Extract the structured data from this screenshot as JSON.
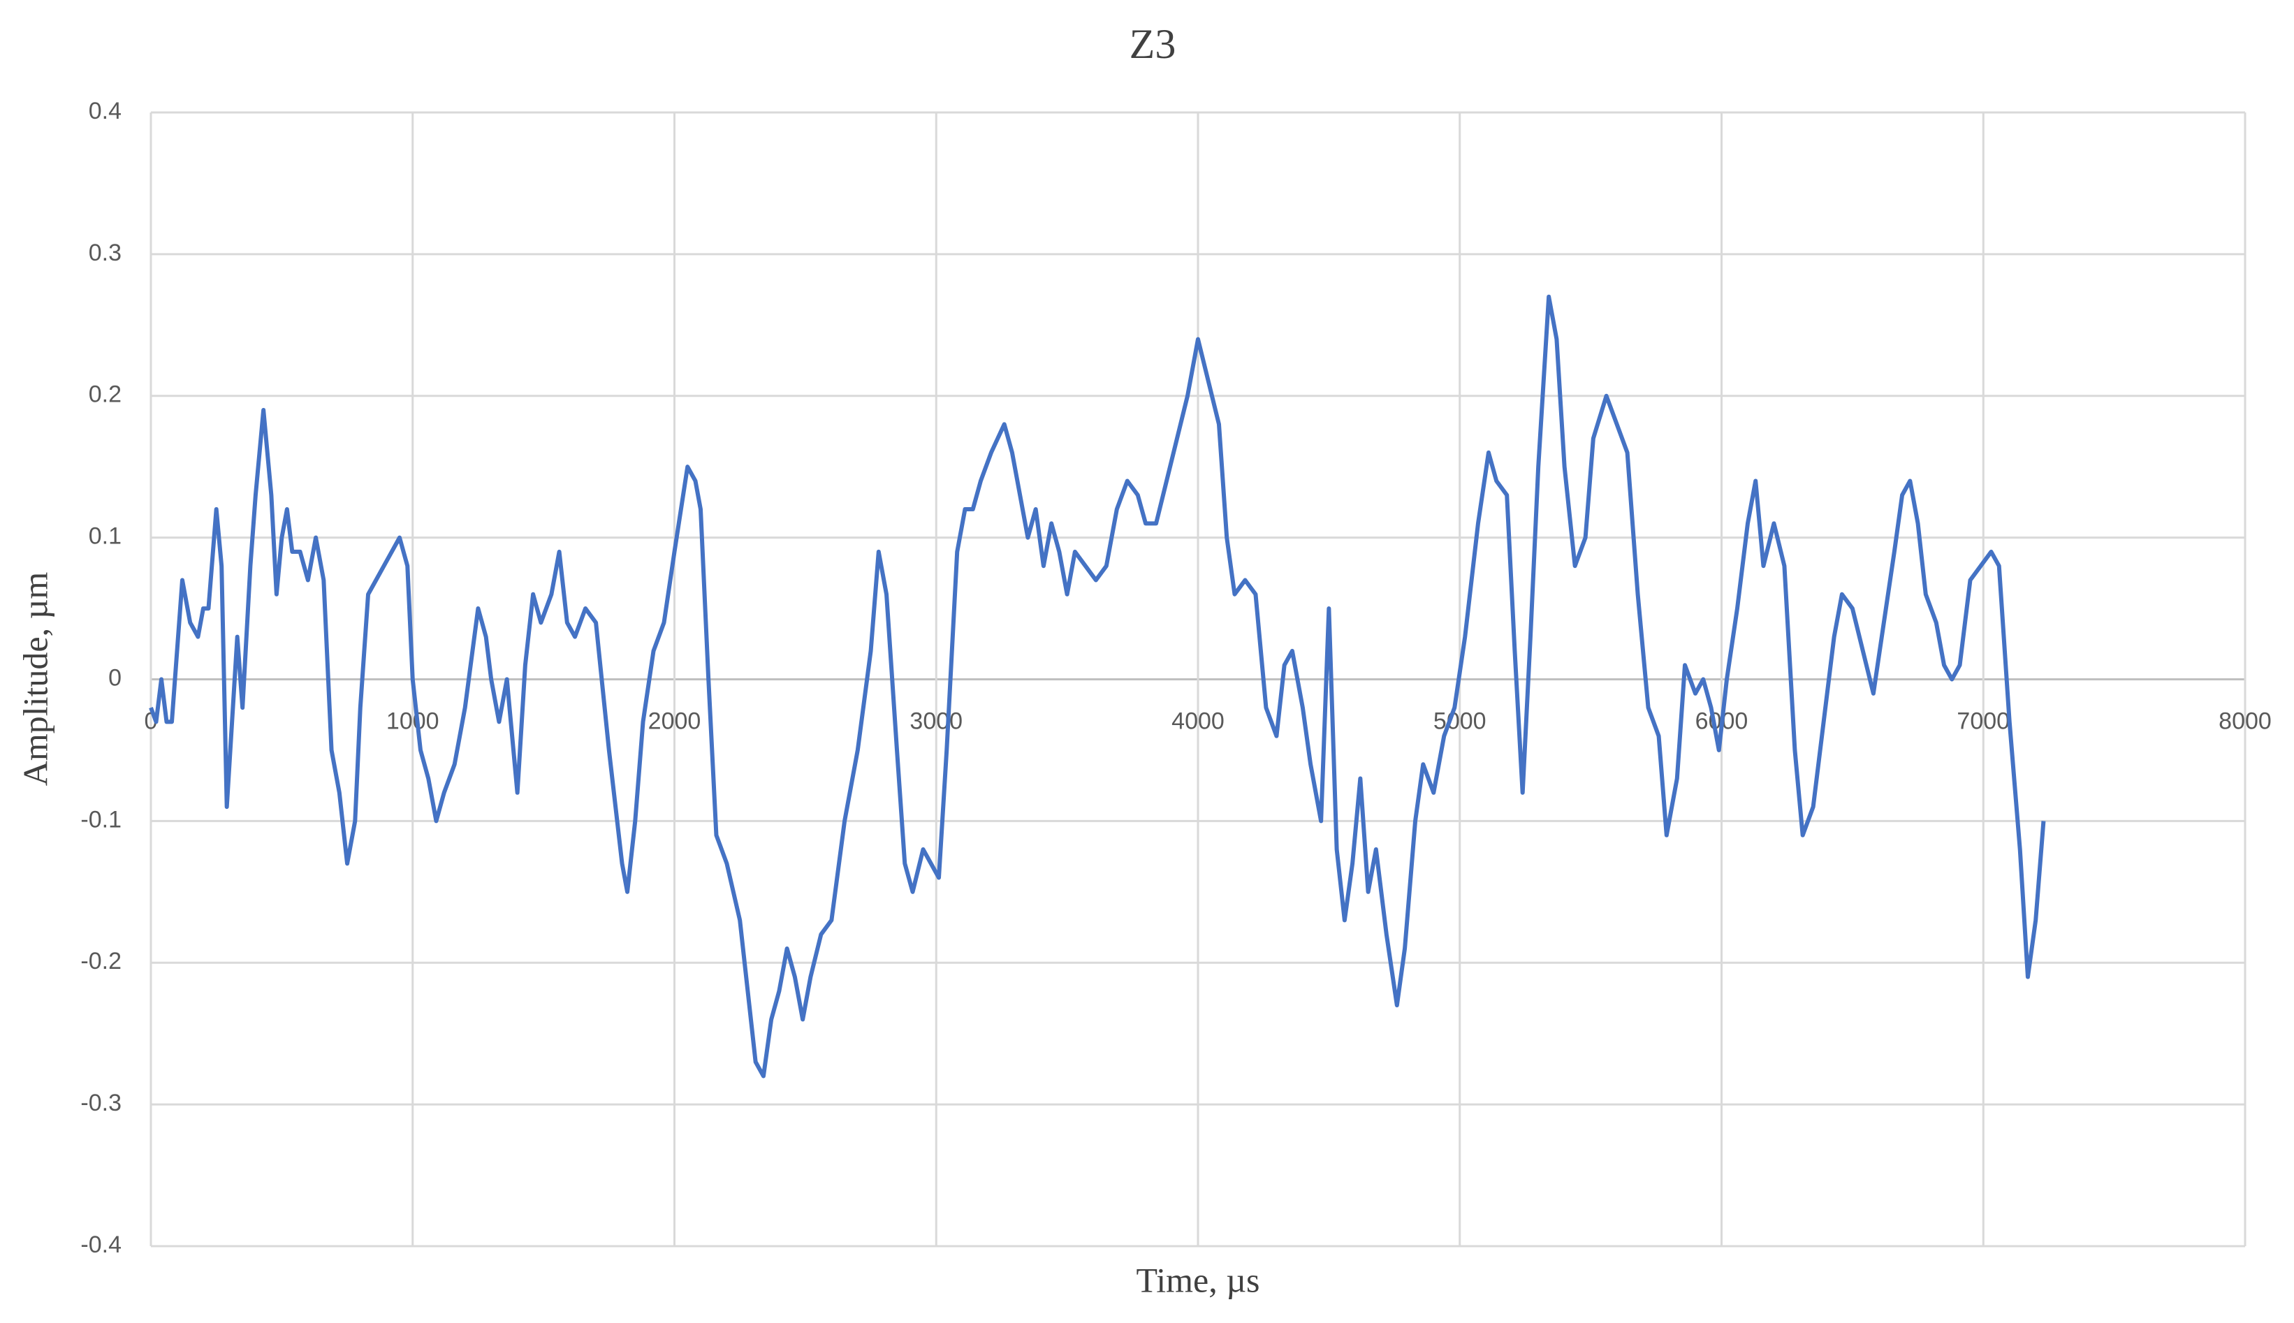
{
  "chart_data": {
    "type": "line",
    "title": "Z3",
    "x_label": "Time, µs",
    "y_label": "Amplitude, µm",
    "xlim": [
      0,
      8000
    ],
    "xticks": [
      0,
      1000,
      2000,
      3000,
      4000,
      5000,
      6000,
      7000,
      8000
    ],
    "ylim": [
      -0.4,
      0.4
    ],
    "yticks": [
      -0.4,
      -0.3,
      -0.2,
      -0.1,
      0,
      0.1,
      0.2,
      0.3,
      0.4
    ],
    "grid": true,
    "x": [
      0,
      20,
      40,
      60,
      80,
      100,
      120,
      150,
      180,
      200,
      220,
      250,
      270,
      290,
      310,
      330,
      350,
      380,
      400,
      430,
      460,
      480,
      500,
      520,
      540,
      570,
      600,
      630,
      660,
      690,
      720,
      750,
      780,
      800,
      830,
      860,
      890,
      920,
      950,
      980,
      1000,
      1030,
      1060,
      1090,
      1120,
      1160,
      1200,
      1250,
      1280,
      1300,
      1330,
      1360,
      1400,
      1430,
      1460,
      1490,
      1530,
      1560,
      1590,
      1620,
      1660,
      1700,
      1750,
      1800,
      1820,
      1850,
      1880,
      1920,
      1960,
      2000,
      2050,
      2080,
      2100,
      2130,
      2160,
      2200,
      2250,
      2280,
      2310,
      2340,
      2370,
      2400,
      2430,
      2460,
      2490,
      2520,
      2560,
      2600,
      2650,
      2700,
      2750,
      2780,
      2810,
      2850,
      2880,
      2910,
      2950,
      2980,
      3010,
      3040,
      3060,
      3080,
      3110,
      3140,
      3170,
      3210,
      3260,
      3290,
      3320,
      3350,
      3380,
      3410,
      3440,
      3470,
      3500,
      3530,
      3570,
      3610,
      3650,
      3690,
      3730,
      3770,
      3800,
      3840,
      3880,
      3920,
      3960,
      4000,
      4040,
      4080,
      4110,
      4140,
      4180,
      4220,
      4260,
      4300,
      4330,
      4360,
      4400,
      4430,
      4470,
      4500,
      4530,
      4560,
      4590,
      4620,
      4650,
      4680,
      4720,
      4760,
      4790,
      4830,
      4860,
      4900,
      4940,
      4980,
      5020,
      5070,
      5110,
      5140,
      5180,
      5210,
      5240,
      5270,
      5300,
      5340,
      5370,
      5400,
      5440,
      5480,
      5510,
      5560,
      5600,
      5640,
      5680,
      5720,
      5760,
      5790,
      5830,
      5860,
      5900,
      5930,
      5960,
      5990,
      6020,
      6060,
      6100,
      6130,
      6160,
      6200,
      6240,
      6280,
      6310,
      6350,
      6390,
      6430,
      6460,
      6500,
      6540,
      6580,
      6620,
      6660,
      6690,
      6720,
      6750,
      6780,
      6820,
      6850,
      6880,
      6910,
      6950,
      6990,
      7030,
      7060,
      7100,
      7140,
      7170,
      7200,
      7230
    ],
    "series": [
      {
        "color": "#4472c4",
        "values": [
          -0.02,
          -0.03,
          0.0,
          -0.03,
          -0.03,
          0.02,
          0.07,
          0.04,
          0.03,
          0.05,
          0.05,
          0.12,
          0.08,
          -0.09,
          -0.03,
          0.03,
          -0.02,
          0.08,
          0.13,
          0.19,
          0.13,
          0.06,
          0.1,
          0.12,
          0.09,
          0.09,
          0.07,
          0.1,
          0.07,
          -0.05,
          -0.08,
          -0.13,
          -0.1,
          -0.02,
          0.06,
          0.07,
          0.08,
          0.09,
          0.1,
          0.08,
          0.0,
          -0.05,
          -0.07,
          -0.1,
          -0.08,
          -0.06,
          -0.02,
          0.05,
          0.03,
          0.0,
          -0.03,
          0.0,
          -0.08,
          0.01,
          0.06,
          0.04,
          0.06,
          0.09,
          0.04,
          0.03,
          0.05,
          0.04,
          -0.05,
          -0.13,
          -0.15,
          -0.1,
          -0.03,
          0.02,
          0.04,
          0.09,
          0.15,
          0.14,
          0.12,
          0.0,
          -0.11,
          -0.13,
          -0.17,
          -0.22,
          -0.27,
          -0.28,
          -0.24,
          -0.22,
          -0.19,
          -0.21,
          -0.24,
          -0.21,
          -0.18,
          -0.17,
          -0.1,
          -0.05,
          0.02,
          0.09,
          0.06,
          -0.05,
          -0.13,
          -0.15,
          -0.12,
          -0.13,
          -0.14,
          -0.05,
          0.02,
          0.09,
          0.12,
          0.12,
          0.14,
          0.16,
          0.18,
          0.16,
          0.13,
          0.1,
          0.12,
          0.08,
          0.11,
          0.09,
          0.06,
          0.09,
          0.08,
          0.07,
          0.08,
          0.12,
          0.14,
          0.13,
          0.11,
          0.11,
          0.14,
          0.17,
          0.2,
          0.24,
          0.21,
          0.18,
          0.1,
          0.06,
          0.07,
          0.06,
          -0.02,
          -0.04,
          0.01,
          0.02,
          -0.02,
          -0.06,
          -0.1,
          0.05,
          -0.12,
          -0.17,
          -0.13,
          -0.07,
          -0.15,
          -0.12,
          -0.18,
          -0.23,
          -0.19,
          -0.1,
          -0.06,
          -0.08,
          -0.04,
          -0.02,
          0.03,
          0.11,
          0.16,
          0.14,
          0.13,
          0.02,
          -0.08,
          0.03,
          0.15,
          0.27,
          0.24,
          0.15,
          0.08,
          0.1,
          0.17,
          0.2,
          0.18,
          0.16,
          0.06,
          -0.02,
          -0.04,
          -0.11,
          -0.07,
          0.01,
          -0.01,
          0.0,
          -0.02,
          -0.05,
          0.0,
          0.05,
          0.11,
          0.14,
          0.08,
          0.11,
          0.08,
          -0.05,
          -0.11,
          -0.09,
          -0.03,
          0.03,
          0.06,
          0.05,
          0.02,
          -0.01,
          0.04,
          0.09,
          0.13,
          0.14,
          0.11,
          0.06,
          0.04,
          0.01,
          0.0,
          0.01,
          0.07,
          0.08,
          0.09,
          0.08,
          -0.03,
          -0.12,
          -0.21,
          -0.17,
          -0.1
        ]
      }
    ]
  }
}
